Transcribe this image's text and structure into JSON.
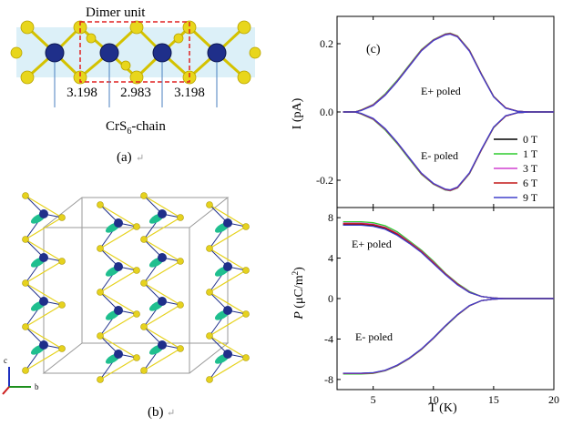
{
  "panel_a": {
    "title": "Dimer unit",
    "distances": [
      "3.198",
      "2.983",
      "3.198"
    ],
    "chain_label": "CrS",
    "chain_sub": "6",
    "chain_suffix": "-chain",
    "caption": "(a)"
  },
  "panel_b": {
    "caption": "(b)",
    "axis_c": "c",
    "axis_b": "b",
    "colors": {
      "cr": "#1f2f8a",
      "s": "#e6d21e",
      "spin": "#1fbf8f",
      "cell": "#9a9a9a"
    }
  },
  "panel_c": {
    "label": "(c)",
    "top_annotations": [
      "E+ poled",
      "E- poled"
    ],
    "bottom_annotations": [
      "E+ poled",
      "E- poled"
    ],
    "x_label": "T (K)",
    "y_label_top": "I (pA)",
    "y_label_bottom_sym": "P",
    "y_label_bottom_unit_pre": "(μC/m",
    "y_label_bottom_unit_sup": "2",
    "y_label_bottom_unit_post": ")"
  },
  "chart_data": [
    {
      "type": "line",
      "title": "",
      "xlabel": "",
      "ylabel": "I (pA)",
      "xlim": [
        2,
        20
      ],
      "ylim": [
        -0.28,
        0.28
      ],
      "xticks": [
        5,
        10,
        15,
        20
      ],
      "yticks": [
        -0.2,
        0.0,
        0.2
      ],
      "legend": "bottom-right",
      "series": [
        {
          "name": "0 T",
          "color": "#000000",
          "x": [
            2.5,
            3.5,
            4,
            5,
            6,
            7,
            8,
            9,
            10,
            11,
            11.4,
            12,
            13,
            14,
            15,
            16,
            17,
            18,
            20
          ],
          "values": [
            0,
            0,
            0.005,
            0.02,
            0.05,
            0.09,
            0.135,
            0.18,
            0.21,
            0.228,
            0.23,
            0.222,
            0.18,
            0.11,
            0.045,
            0.012,
            0.002,
            0,
            0
          ]
        },
        {
          "name": "1 T",
          "color": "#2ecc2e",
          "x": [
            2.5,
            3.5,
            4,
            5,
            6,
            7,
            8,
            9,
            10,
            11,
            11.4,
            12,
            13,
            14,
            15,
            16,
            17,
            18,
            20
          ],
          "values": [
            0,
            0,
            0.006,
            0.022,
            0.053,
            0.093,
            0.138,
            0.183,
            0.212,
            0.229,
            0.231,
            0.223,
            0.181,
            0.111,
            0.046,
            0.012,
            0.002,
            0,
            0
          ]
        },
        {
          "name": "3 T",
          "color": "#d040d0",
          "x": [
            2.5,
            3.5,
            4,
            5,
            6,
            7,
            8,
            9,
            10,
            11,
            11.4,
            12,
            13,
            14,
            15,
            16,
            17,
            18,
            20
          ],
          "values": [
            0,
            0,
            0.005,
            0.021,
            0.051,
            0.091,
            0.136,
            0.181,
            0.211,
            0.228,
            0.23,
            0.222,
            0.18,
            0.11,
            0.045,
            0.012,
            0.002,
            0,
            0
          ]
        },
        {
          "name": "6 T",
          "color": "#c41818",
          "x": [
            2.5,
            3.5,
            4,
            5,
            6,
            7,
            8,
            9,
            10,
            11,
            11.4,
            12,
            13,
            14,
            15,
            16,
            17,
            18,
            20
          ],
          "values": [
            0,
            0,
            0.005,
            0.02,
            0.05,
            0.09,
            0.135,
            0.18,
            0.21,
            0.227,
            0.229,
            0.221,
            0.179,
            0.109,
            0.045,
            0.012,
            0.002,
            0,
            0
          ]
        },
        {
          "name": "9 T",
          "color": "#4040cc",
          "x": [
            2.5,
            3.5,
            4,
            5,
            6,
            7,
            8,
            9,
            10,
            11,
            11.4,
            12,
            13,
            14,
            15,
            16,
            17,
            18,
            20
          ],
          "values": [
            0,
            0,
            0.004,
            0.019,
            0.049,
            0.089,
            0.134,
            0.179,
            0.209,
            0.226,
            0.228,
            0.22,
            0.178,
            0.108,
            0.044,
            0.011,
            0.002,
            0,
            0
          ]
        },
        {
          "name": "",
          "color": "#000000",
          "x": [
            2.5,
            3.5,
            4,
            5,
            6,
            7,
            8,
            9,
            10,
            11,
            11.4,
            12,
            13,
            14,
            15,
            16,
            17,
            18,
            20
          ],
          "values": [
            0,
            0,
            -0.005,
            -0.02,
            -0.05,
            -0.09,
            -0.135,
            -0.18,
            -0.21,
            -0.228,
            -0.23,
            -0.222,
            -0.18,
            -0.11,
            -0.045,
            -0.012,
            -0.002,
            0,
            0
          ]
        },
        {
          "name": "",
          "color": "#2ecc2e",
          "x": [
            2.5,
            3.5,
            4,
            5,
            6,
            7,
            8,
            9,
            10,
            11,
            11.4,
            12,
            13,
            14,
            15,
            16,
            17,
            18,
            20
          ],
          "values": [
            0,
            0,
            -0.006,
            -0.022,
            -0.053,
            -0.093,
            -0.138,
            -0.183,
            -0.212,
            -0.229,
            -0.231,
            -0.223,
            -0.181,
            -0.111,
            -0.046,
            -0.012,
            -0.002,
            0,
            0
          ]
        },
        {
          "name": "",
          "color": "#d040d0",
          "x": [
            2.5,
            3.5,
            4,
            5,
            6,
            7,
            8,
            9,
            10,
            11,
            11.4,
            12,
            13,
            14,
            15,
            16,
            17,
            18,
            20
          ],
          "values": [
            0,
            0,
            -0.005,
            -0.021,
            -0.051,
            -0.091,
            -0.136,
            -0.181,
            -0.211,
            -0.228,
            -0.23,
            -0.222,
            -0.18,
            -0.11,
            -0.045,
            -0.012,
            -0.002,
            0,
            0
          ]
        },
        {
          "name": "",
          "color": "#c41818",
          "x": [
            2.5,
            3.5,
            4,
            5,
            6,
            7,
            8,
            9,
            10,
            11,
            11.4,
            12,
            13,
            14,
            15,
            16,
            17,
            18,
            20
          ],
          "values": [
            0,
            0,
            -0.005,
            -0.02,
            -0.05,
            -0.09,
            -0.135,
            -0.18,
            -0.21,
            -0.227,
            -0.229,
            -0.221,
            -0.179,
            -0.109,
            -0.045,
            -0.012,
            -0.002,
            0,
            0
          ]
        },
        {
          "name": "",
          "color": "#4040cc",
          "x": [
            2.5,
            3.5,
            4,
            5,
            6,
            7,
            8,
            9,
            10,
            11,
            11.4,
            12,
            13,
            14,
            15,
            16,
            17,
            18,
            20
          ],
          "values": [
            0,
            0,
            -0.004,
            -0.019,
            -0.049,
            -0.089,
            -0.134,
            -0.179,
            -0.209,
            -0.226,
            -0.228,
            -0.22,
            -0.178,
            -0.108,
            -0.044,
            -0.011,
            -0.002,
            0,
            0
          ]
        }
      ]
    },
    {
      "type": "line",
      "title": "",
      "xlabel": "T (K)",
      "ylabel": "P (μC/m²)",
      "xlim": [
        2,
        20
      ],
      "ylim": [
        -9,
        9
      ],
      "xticks": [
        5,
        10,
        15,
        20
      ],
      "yticks": [
        -8,
        -4,
        0,
        4,
        8
      ],
      "series": [
        {
          "name": "0 T",
          "color": "#000000",
          "x": [
            2.5,
            4,
            5,
            6,
            7,
            8,
            9,
            10,
            11,
            12,
            13,
            14,
            15,
            16,
            17,
            18,
            20
          ],
          "values": [
            7.3,
            7.3,
            7.2,
            6.9,
            6.3,
            5.5,
            4.6,
            3.5,
            2.4,
            1.4,
            0.6,
            0.2,
            0.05,
            0,
            0,
            0,
            0
          ]
        },
        {
          "name": "1 T",
          "color": "#2ecc2e",
          "x": [
            2.5,
            4,
            5,
            6,
            7,
            8,
            9,
            10,
            11,
            12,
            13,
            14,
            15,
            16,
            17,
            18,
            20
          ],
          "values": [
            7.6,
            7.6,
            7.5,
            7.2,
            6.6,
            5.7,
            4.8,
            3.7,
            2.5,
            1.5,
            0.7,
            0.2,
            0.05,
            0,
            0,
            0,
            0
          ]
        },
        {
          "name": "3 T",
          "color": "#d040d0",
          "x": [
            2.5,
            4,
            5,
            6,
            7,
            8,
            9,
            10,
            11,
            12,
            13,
            14,
            15,
            16,
            17,
            18,
            20
          ],
          "values": [
            7.45,
            7.45,
            7.35,
            7.05,
            6.45,
            5.6,
            4.7,
            3.6,
            2.45,
            1.45,
            0.65,
            0.2,
            0.05,
            0,
            0,
            0,
            0
          ]
        },
        {
          "name": "6 T",
          "color": "#c41818",
          "x": [
            2.5,
            4,
            5,
            6,
            7,
            8,
            9,
            10,
            11,
            12,
            13,
            14,
            15,
            16,
            17,
            18,
            20
          ],
          "values": [
            7.4,
            7.4,
            7.3,
            7.0,
            6.4,
            5.55,
            4.65,
            3.55,
            2.42,
            1.42,
            0.62,
            0.2,
            0.05,
            0,
            0,
            0,
            0
          ]
        },
        {
          "name": "9 T",
          "color": "#4040cc",
          "x": [
            2.5,
            4,
            5,
            6,
            7,
            8,
            9,
            10,
            11,
            12,
            13,
            14,
            15,
            16,
            17,
            18,
            20
          ],
          "values": [
            7.25,
            7.25,
            7.15,
            6.85,
            6.25,
            5.45,
            4.55,
            3.45,
            2.35,
            1.35,
            0.6,
            0.2,
            0.05,
            0,
            0,
            0,
            0
          ]
        },
        {
          "name": "",
          "color": "#000000",
          "x": [
            2.5,
            4,
            5,
            6,
            7,
            8,
            9,
            10,
            11,
            12,
            13,
            14,
            15,
            16,
            17,
            18,
            20
          ],
          "values": [
            -7.4,
            -7.4,
            -7.35,
            -7.1,
            -6.6,
            -5.9,
            -5.0,
            -3.9,
            -2.7,
            -1.6,
            -0.7,
            -0.2,
            -0.05,
            0,
            0,
            0,
            0
          ]
        },
        {
          "name": "",
          "color": "#2ecc2e",
          "x": [
            2.5,
            4,
            5,
            6,
            7,
            8,
            9,
            10,
            11,
            12,
            13,
            14,
            15,
            16,
            17,
            18,
            20
          ],
          "values": [
            -7.45,
            -7.45,
            -7.4,
            -7.15,
            -6.65,
            -5.95,
            -5.05,
            -3.95,
            -2.75,
            -1.65,
            -0.72,
            -0.2,
            -0.05,
            0,
            0,
            0,
            0
          ]
        },
        {
          "name": "",
          "color": "#d040d0",
          "x": [
            2.5,
            4,
            5,
            6,
            7,
            8,
            9,
            10,
            11,
            12,
            13,
            14,
            15,
            16,
            17,
            18,
            20
          ],
          "values": [
            -7.42,
            -7.42,
            -7.37,
            -7.12,
            -6.62,
            -5.92,
            -5.02,
            -3.92,
            -2.72,
            -1.62,
            -0.71,
            -0.2,
            -0.05,
            0,
            0,
            0,
            0
          ]
        },
        {
          "name": "",
          "color": "#c41818",
          "x": [
            2.5,
            4,
            5,
            6,
            7,
            8,
            9,
            10,
            11,
            12,
            13,
            14,
            15,
            16,
            17,
            18,
            20
          ],
          "values": [
            -7.4,
            -7.4,
            -7.35,
            -7.1,
            -6.6,
            -5.9,
            -5.0,
            -3.9,
            -2.7,
            -1.6,
            -0.7,
            -0.2,
            -0.05,
            0,
            0,
            0,
            0
          ]
        },
        {
          "name": "",
          "color": "#4040cc",
          "x": [
            2.5,
            4,
            5,
            6,
            7,
            8,
            9,
            10,
            11,
            12,
            13,
            14,
            15,
            16,
            17,
            18,
            20
          ],
          "values": [
            -7.38,
            -7.38,
            -7.33,
            -7.08,
            -6.58,
            -5.88,
            -4.98,
            -3.88,
            -2.68,
            -1.58,
            -0.68,
            -0.2,
            -0.05,
            0,
            0,
            0,
            0
          ]
        }
      ]
    }
  ]
}
